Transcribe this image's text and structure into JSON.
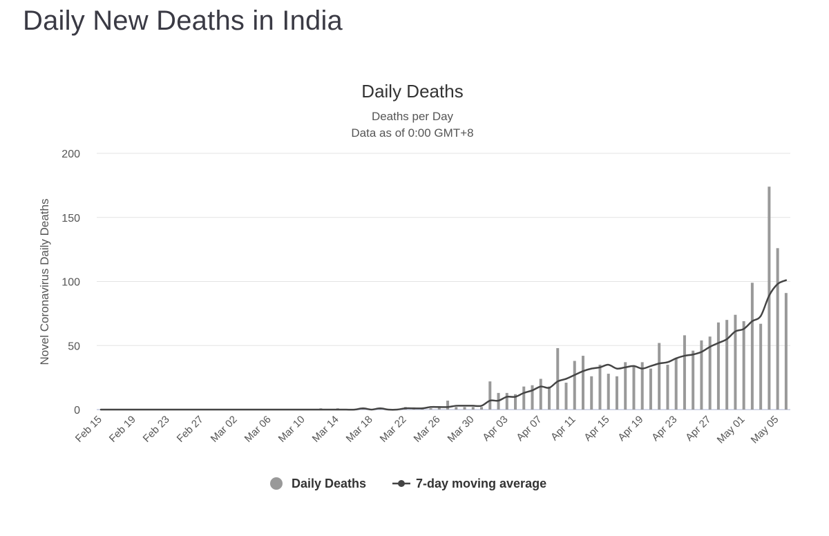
{
  "page": {
    "title": "Daily New Deaths in India"
  },
  "colors": {
    "bars": "#999999",
    "line": "#444444",
    "grid": "#e3e3e3",
    "baseline": "#c5cbe0"
  },
  "chart_data": {
    "type": "bar",
    "title": "Daily Deaths",
    "subtitle_lines": [
      "Deaths per Day",
      "Data as of 0:00 GMT+8"
    ],
    "ylabel": "Novel Coronavirus Daily Deaths",
    "xlabel": "",
    "ylim": [
      0,
      200
    ],
    "yticks": [
      0,
      50,
      100,
      150,
      200
    ],
    "xtick_labels": [
      "Feb 15",
      "Feb 19",
      "Feb 23",
      "Feb 27",
      "Mar 02",
      "Mar 06",
      "Mar 10",
      "Mar 14",
      "Mar 18",
      "Mar 22",
      "Mar 26",
      "Mar 30",
      "Apr 03",
      "Apr 07",
      "Apr 11",
      "Apr 15",
      "Apr 19",
      "Apr 23",
      "Apr 27",
      "May 01",
      "May 05"
    ],
    "categories": [
      "Feb 15",
      "Feb 16",
      "Feb 17",
      "Feb 18",
      "Feb 19",
      "Feb 20",
      "Feb 21",
      "Feb 22",
      "Feb 23",
      "Feb 24",
      "Feb 25",
      "Feb 26",
      "Feb 27",
      "Feb 28",
      "Feb 29",
      "Mar 01",
      "Mar 02",
      "Mar 03",
      "Mar 04",
      "Mar 05",
      "Mar 06",
      "Mar 07",
      "Mar 08",
      "Mar 09",
      "Mar 10",
      "Mar 11",
      "Mar 12",
      "Mar 13",
      "Mar 14",
      "Mar 15",
      "Mar 16",
      "Mar 17",
      "Mar 18",
      "Mar 19",
      "Mar 20",
      "Mar 21",
      "Mar 22",
      "Mar 23",
      "Mar 24",
      "Mar 25",
      "Mar 26",
      "Mar 27",
      "Mar 28",
      "Mar 29",
      "Mar 30",
      "Mar 31",
      "Apr 01",
      "Apr 02",
      "Apr 03",
      "Apr 04",
      "Apr 05",
      "Apr 06",
      "Apr 07",
      "Apr 08",
      "Apr 09",
      "Apr 10",
      "Apr 11",
      "Apr 12",
      "Apr 13",
      "Apr 14",
      "Apr 15",
      "Apr 16",
      "Apr 17",
      "Apr 18",
      "Apr 19",
      "Apr 20",
      "Apr 21",
      "Apr 22",
      "Apr 23",
      "Apr 24",
      "Apr 25",
      "Apr 26",
      "Apr 27",
      "Apr 28",
      "Apr 29",
      "Apr 30",
      "May 01",
      "May 02",
      "May 03",
      "May 04",
      "May 05",
      "May 06"
    ],
    "series": [
      {
        "name": "Daily Deaths",
        "type": "bar",
        "values": [
          0,
          0,
          0,
          0,
          0,
          0,
          0,
          0,
          0,
          0,
          0,
          0,
          0,
          0,
          0,
          0,
          0,
          0,
          0,
          0,
          0,
          0,
          0,
          0,
          0,
          0,
          1,
          0,
          1,
          0,
          0,
          1,
          0,
          1,
          0,
          0,
          2,
          1,
          1,
          1,
          2,
          7,
          2,
          2,
          2,
          2,
          22,
          13,
          13,
          12,
          18,
          19,
          24,
          18,
          48,
          21,
          38,
          42,
          26,
          35,
          28,
          26,
          37,
          34,
          37,
          32,
          52,
          35,
          40,
          58,
          46,
          54,
          57,
          68,
          70,
          74,
          69,
          99,
          67,
          174,
          126,
          91
        ]
      },
      {
        "name": "7-day moving average",
        "type": "line",
        "values": [
          0,
          0,
          0,
          0,
          0,
          0,
          0,
          0,
          0,
          0,
          0,
          0,
          0,
          0,
          0,
          0,
          0,
          0,
          0,
          0,
          0,
          0,
          0,
          0,
          0,
          0,
          0,
          0,
          0,
          0,
          0,
          1,
          0,
          1,
          0,
          0,
          1,
          1,
          1,
          2,
          2,
          2,
          3,
          3,
          3,
          3,
          7,
          7,
          10,
          10,
          13,
          15,
          18,
          17,
          22,
          24,
          27,
          30,
          32,
          33,
          35,
          32,
          33,
          34,
          32,
          34,
          36,
          37,
          40,
          42,
          43,
          45,
          49,
          52,
          55,
          61,
          63,
          69,
          73,
          89,
          98,
          101
        ]
      }
    ],
    "legend": {
      "position": "bottom-center",
      "items": [
        "Daily Deaths",
        "7-day moving average"
      ]
    }
  }
}
